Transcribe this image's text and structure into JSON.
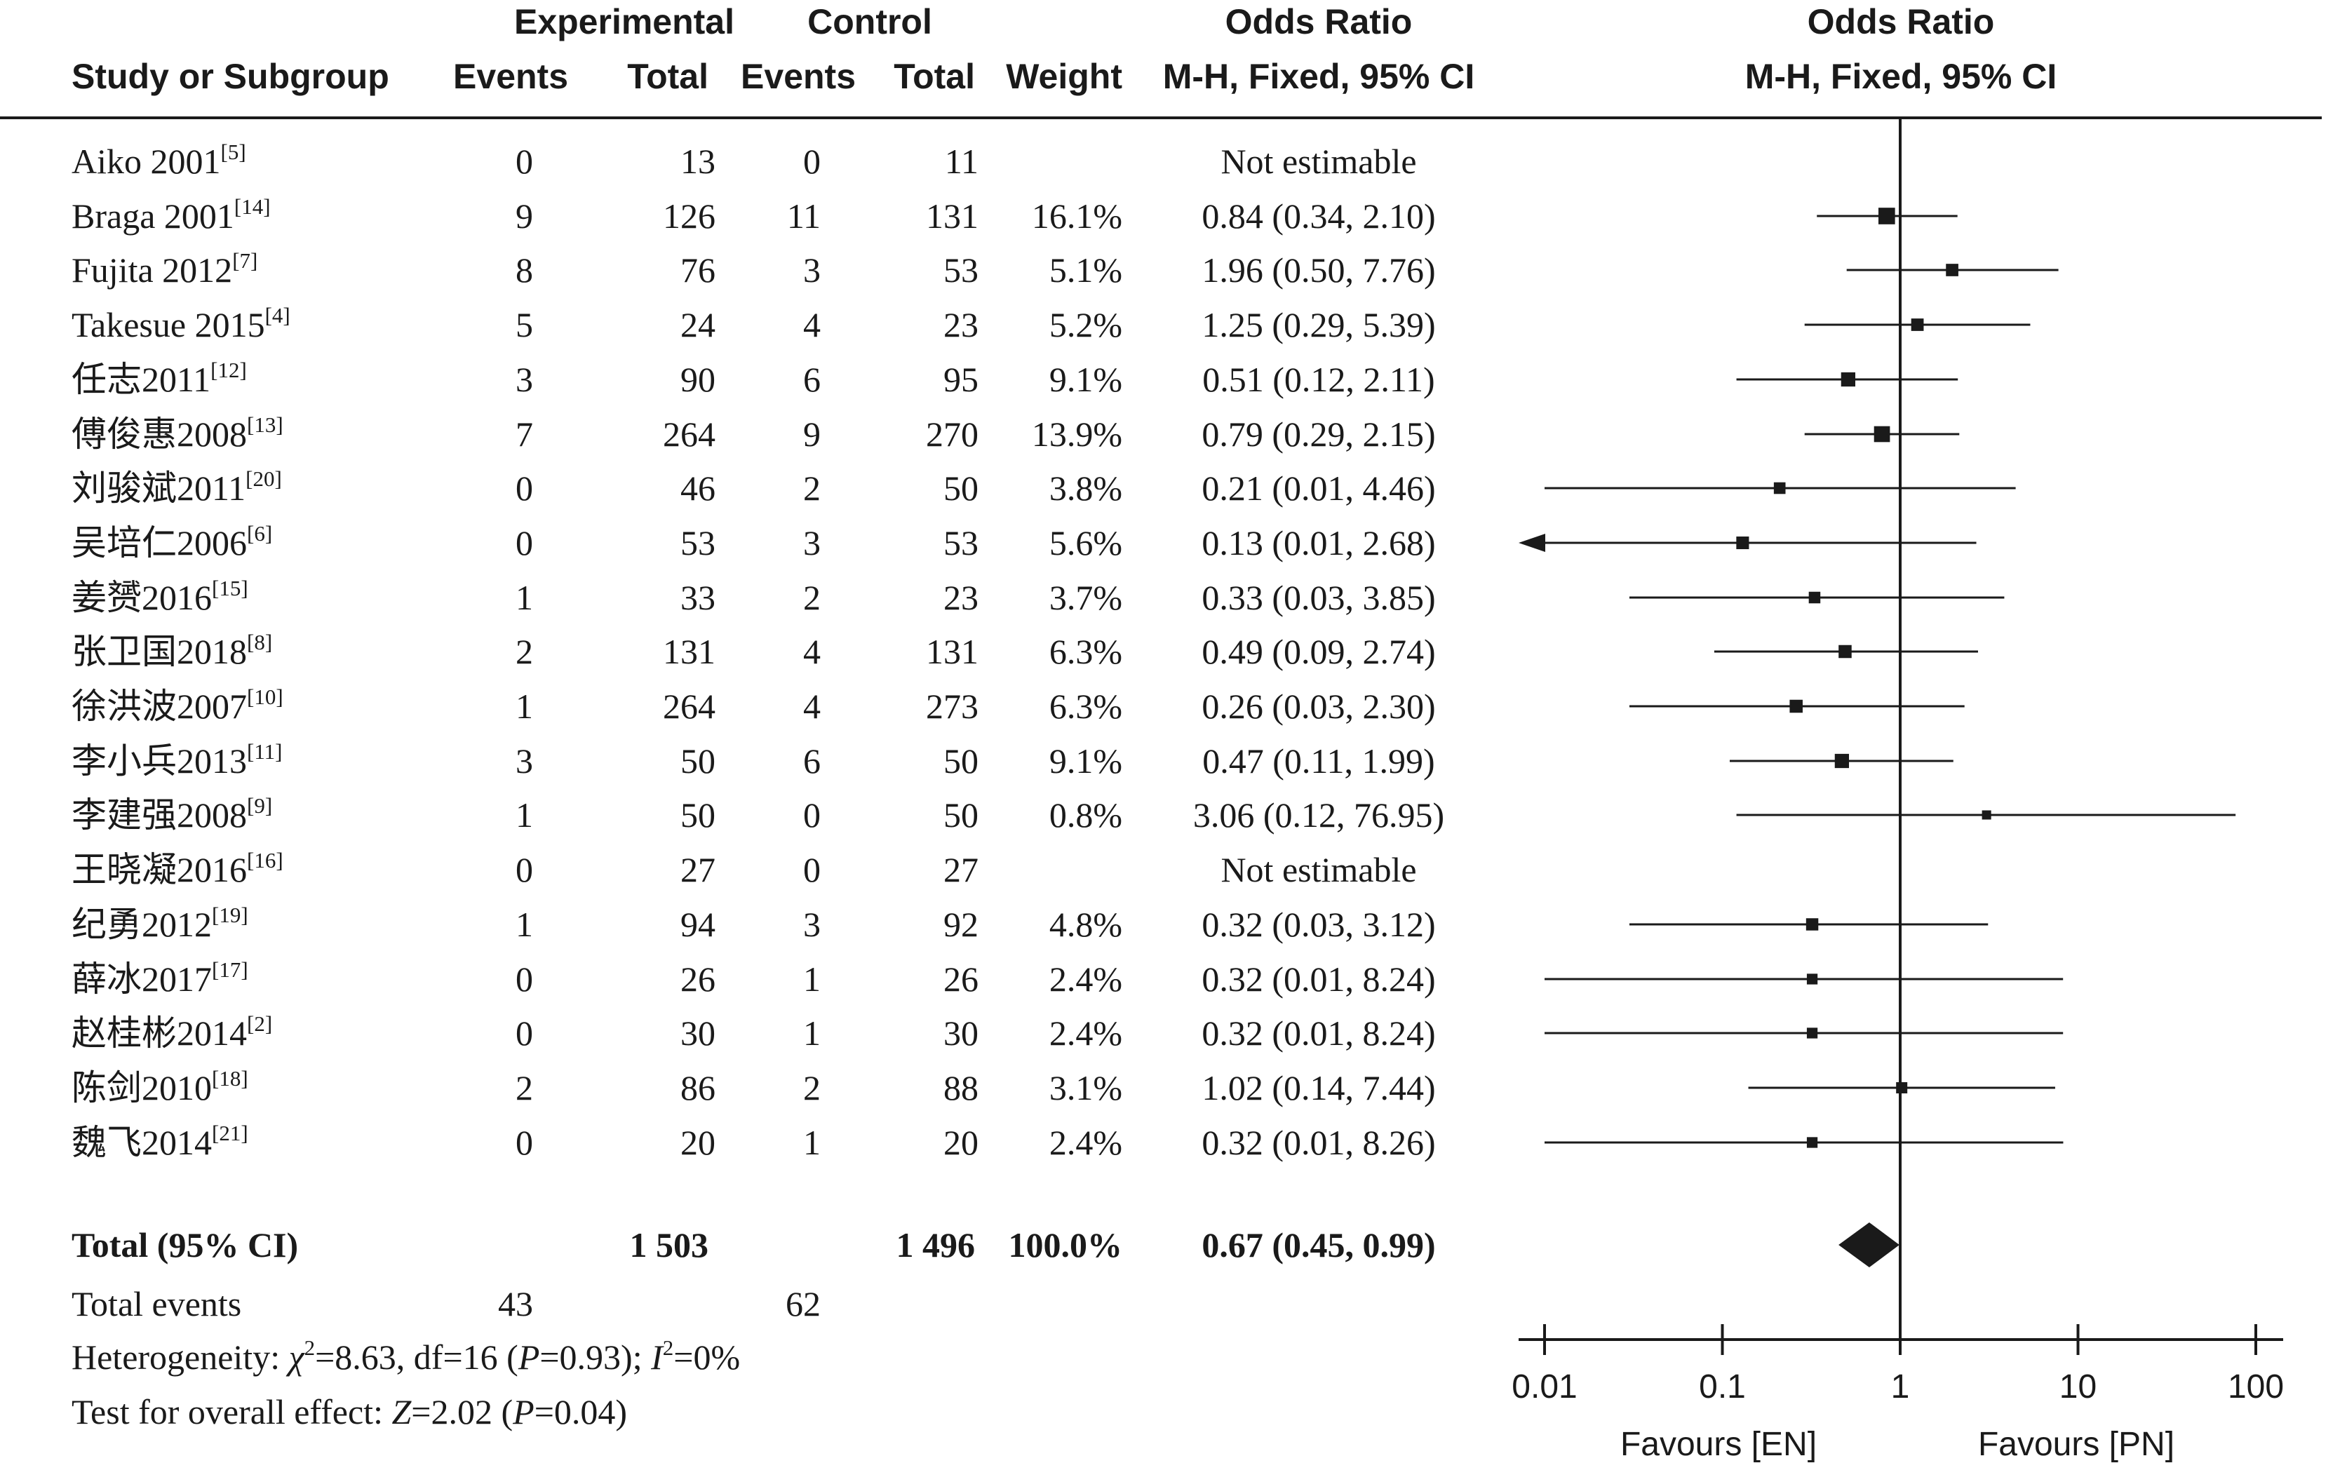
{
  "header": {
    "group_experimental": "Experimental",
    "group_control": "Control",
    "odds_ratio_title": "Odds Ratio",
    "odds_ratio_method": "M-H, Fixed, 95% CI",
    "plot_title": "Odds Ratio",
    "plot_method": "M-H, Fixed, 95% CI",
    "columns": [
      "Study or Subgroup",
      "Events",
      "Total",
      "Events",
      "Total",
      "Weight"
    ]
  },
  "studies": [
    {
      "name": "Aiko 2001",
      "ref": "[5]",
      "exp_events": "0",
      "exp_total": "13",
      "ctl_events": "0",
      "ctl_total": "11",
      "weight": "",
      "ci": "Not estimable"
    },
    {
      "name": "Braga 2001",
      "ref": "[14]",
      "exp_events": "9",
      "exp_total": "126",
      "ctl_events": "11",
      "ctl_total": "131",
      "weight": "16.1%",
      "ci": "0.84 (0.34, 2.10)"
    },
    {
      "name": "Fujita 2012",
      "ref": "[7]",
      "exp_events": "8",
      "exp_total": "76",
      "ctl_events": "3",
      "ctl_total": "53",
      "weight": "5.1%",
      "ci": "1.96 (0.50, 7.76)"
    },
    {
      "name": "Takesue 2015",
      "ref": "[4]",
      "exp_events": "5",
      "exp_total": "24",
      "ctl_events": "4",
      "ctl_total": "23",
      "weight": "5.2%",
      "ci": "1.25 (0.29, 5.39)"
    },
    {
      "name": "任志2011",
      "ref": "[12]",
      "exp_events": "3",
      "exp_total": "90",
      "ctl_events": "6",
      "ctl_total": "95",
      "weight": "9.1%",
      "ci": "0.51 (0.12, 2.11)"
    },
    {
      "name": "傅俊惠2008",
      "ref": "[13]",
      "exp_events": "7",
      "exp_total": "264",
      "ctl_events": "9",
      "ctl_total": "270",
      "weight": "13.9%",
      "ci": "0.79 (0.29, 2.15)"
    },
    {
      "name": "刘骏斌2011",
      "ref": "[20]",
      "exp_events": "0",
      "exp_total": "46",
      "ctl_events": "2",
      "ctl_total": "50",
      "weight": "3.8%",
      "ci": "0.21 (0.01, 4.46)"
    },
    {
      "name": "吴培仁2006",
      "ref": "[6]",
      "exp_events": "0",
      "exp_total": "53",
      "ctl_events": "3",
      "ctl_total": "53",
      "weight": "5.6%",
      "ci": "0.13 (0.01, 2.68)"
    },
    {
      "name": "姜赟2016",
      "ref": "[15]",
      "exp_events": "1",
      "exp_total": "33",
      "ctl_events": "2",
      "ctl_total": "23",
      "weight": "3.7%",
      "ci": "0.33 (0.03, 3.85)"
    },
    {
      "name": "张卫国2018",
      "ref": "[8]",
      "exp_events": "2",
      "exp_total": "131",
      "ctl_events": "4",
      "ctl_total": "131",
      "weight": "6.3%",
      "ci": "0.49 (0.09, 2.74)"
    },
    {
      "name": "徐洪波2007",
      "ref": "[10]",
      "exp_events": "1",
      "exp_total": "264",
      "ctl_events": "4",
      "ctl_total": "273",
      "weight": "6.3%",
      "ci": "0.26 (0.03, 2.30)"
    },
    {
      "name": "李小兵2013",
      "ref": "[11]",
      "exp_events": "3",
      "exp_total": "50",
      "ctl_events": "6",
      "ctl_total": "50",
      "weight": "9.1%",
      "ci": "0.47 (0.11, 1.99)"
    },
    {
      "name": "李建强2008",
      "ref": "[9]",
      "exp_events": "1",
      "exp_total": "50",
      "ctl_events": "0",
      "ctl_total": "50",
      "weight": "0.8%",
      "ci": "3.06 (0.12, 76.95)"
    },
    {
      "name": "王晓凝2016",
      "ref": "[16]",
      "exp_events": "0",
      "exp_total": "27",
      "ctl_events": "0",
      "ctl_total": "27",
      "weight": "",
      "ci": "Not estimable"
    },
    {
      "name": "纪勇2012",
      "ref": "[19]",
      "exp_events": "1",
      "exp_total": "94",
      "ctl_events": "3",
      "ctl_total": "92",
      "weight": "4.8%",
      "ci": "0.32 (0.03, 3.12)"
    },
    {
      "name": "薛冰2017",
      "ref": "[17]",
      "exp_events": "0",
      "exp_total": "26",
      "ctl_events": "1",
      "ctl_total": "26",
      "weight": "2.4%",
      "ci": "0.32 (0.01, 8.24)"
    },
    {
      "name": "赵桂彬2014",
      "ref": "[2]",
      "exp_events": "0",
      "exp_total": "30",
      "ctl_events": "1",
      "ctl_total": "30",
      "weight": "2.4%",
      "ci": "0.32 (0.01, 8.24)"
    },
    {
      "name": "陈剑2010",
      "ref": "[18]",
      "exp_events": "2",
      "exp_total": "86",
      "ctl_events": "2",
      "ctl_total": "88",
      "weight": "3.1%",
      "ci": "1.02 (0.14, 7.44)"
    },
    {
      "name": "魏飞2014",
      "ref": "[21]",
      "exp_events": "0",
      "exp_total": "20",
      "ctl_events": "1",
      "ctl_total": "20",
      "weight": "2.4%",
      "ci": "0.32 (0.01, 8.26)"
    }
  ],
  "total": {
    "label": "Total (95% CI)",
    "exp_total": "1 503",
    "ctl_total": "1 496",
    "weight": "100.0%",
    "ci": "0.67 (0.45, 0.99)"
  },
  "total_events": {
    "label": "Total events",
    "exp": "43",
    "ctl": "62"
  },
  "heterogeneity": {
    "prefix": "Heterogeneity: ",
    "chi": "χ",
    "chi_sup": "2",
    "chi_val": "=8.63, df=16 (",
    "p": "P",
    "p_val": "=0.93); ",
    "i": "I",
    "i_sup": "2",
    "i_val": "=0%"
  },
  "overall_effect": {
    "prefix": "Test for overall effect: ",
    "z": "Z",
    "z_val": "=2.02 (",
    "p": "P",
    "p_val": "=0.04)"
  },
  "chart_data": {
    "type": "forest",
    "x_scale": "log",
    "xlim": [
      0.01,
      100
    ],
    "ticks": [
      "0.01",
      "0.1",
      "1",
      "10",
      "100"
    ],
    "tick_values": [
      0.01,
      0.1,
      1,
      10,
      100
    ],
    "reference_line": 1,
    "favours_left": "Favours [EN]",
    "favours_right": "Favours [PN]",
    "marker_color": "#1a1a1a",
    "studies": [
      {
        "or": null,
        "lo": null,
        "hi": null,
        "weight": 0
      },
      {
        "or": 0.84,
        "lo": 0.34,
        "hi": 2.1,
        "weight": 16.1
      },
      {
        "or": 1.96,
        "lo": 0.5,
        "hi": 7.76,
        "weight": 5.1
      },
      {
        "or": 1.25,
        "lo": 0.29,
        "hi": 5.39,
        "weight": 5.2
      },
      {
        "or": 0.51,
        "lo": 0.12,
        "hi": 2.11,
        "weight": 9.1
      },
      {
        "or": 0.79,
        "lo": 0.29,
        "hi": 2.15,
        "weight": 13.9
      },
      {
        "or": 0.21,
        "lo": 0.01,
        "hi": 4.46,
        "weight": 3.8
      },
      {
        "or": 0.13,
        "lo": 0.01,
        "hi": 2.68,
        "weight": 5.6
      },
      {
        "or": 0.33,
        "lo": 0.03,
        "hi": 3.85,
        "weight": 3.7
      },
      {
        "or": 0.49,
        "lo": 0.09,
        "hi": 2.74,
        "weight": 6.3
      },
      {
        "or": 0.26,
        "lo": 0.03,
        "hi": 2.3,
        "weight": 6.3
      },
      {
        "or": 0.47,
        "lo": 0.11,
        "hi": 1.99,
        "weight": 9.1
      },
      {
        "or": 3.06,
        "lo": 0.12,
        "hi": 76.95,
        "weight": 0.8
      },
      {
        "or": null,
        "lo": null,
        "hi": null,
        "weight": 0
      },
      {
        "or": 0.32,
        "lo": 0.03,
        "hi": 3.12,
        "weight": 4.8
      },
      {
        "or": 0.32,
        "lo": 0.01,
        "hi": 8.24,
        "weight": 2.4
      },
      {
        "or": 0.32,
        "lo": 0.01,
        "hi": 8.24,
        "weight": 2.4
      },
      {
        "or": 1.02,
        "lo": 0.14,
        "hi": 7.44,
        "weight": 3.1
      },
      {
        "or": 0.32,
        "lo": 0.01,
        "hi": 8.26,
        "weight": 2.4
      }
    ],
    "pooled": {
      "or": 0.67,
      "lo": 0.45,
      "hi": 0.99
    }
  }
}
